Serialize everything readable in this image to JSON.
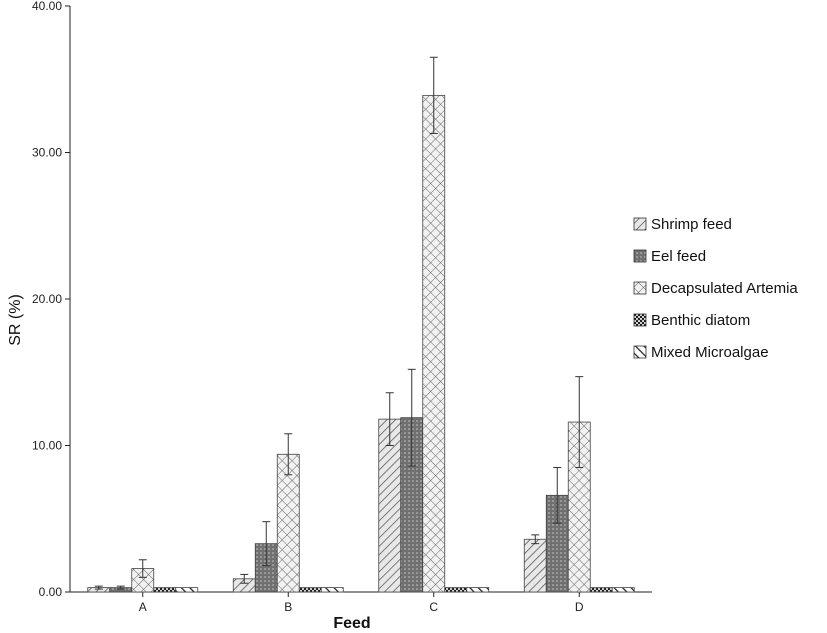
{
  "chart_data": {
    "type": "bar",
    "xlabel": "Feed",
    "ylabel": "SR (%)",
    "ylim": [
      0,
      40
    ],
    "yticks": [
      "0.00",
      "10.00",
      "20.00",
      "30.00",
      "40.00"
    ],
    "categories": [
      "A",
      "B",
      "C",
      "D"
    ],
    "legend_position": "right",
    "error_bars": true,
    "series": [
      {
        "name": "Shrimp feed",
        "values": [
          0.3,
          0.9,
          11.8,
          3.6
        ],
        "errors": [
          0.1,
          0.3,
          1.8,
          0.3
        ],
        "pattern": "diagonal-light"
      },
      {
        "name": "Eel feed",
        "values": [
          0.3,
          3.3,
          11.9,
          6.6
        ],
        "errors": [
          0.1,
          1.5,
          3.3,
          1.9
        ],
        "pattern": "dark-dotted"
      },
      {
        "name": "Decapsulated Artemia",
        "values": [
          1.6,
          9.4,
          33.9,
          11.6
        ],
        "errors": [
          0.6,
          1.4,
          2.6,
          3.1
        ],
        "pattern": "crosshatch"
      },
      {
        "name": "Benthic diatom",
        "values": [
          0.3,
          0.3,
          0.3,
          0.3
        ],
        "errors": [
          0,
          0,
          0,
          0
        ],
        "pattern": "dark-checker"
      },
      {
        "name": "Mixed Microalgae",
        "values": [
          0.3,
          0.3,
          0.3,
          0.3
        ],
        "errors": [
          0,
          0,
          0,
          0
        ],
        "pattern": "diagonal-bold"
      }
    ]
  }
}
